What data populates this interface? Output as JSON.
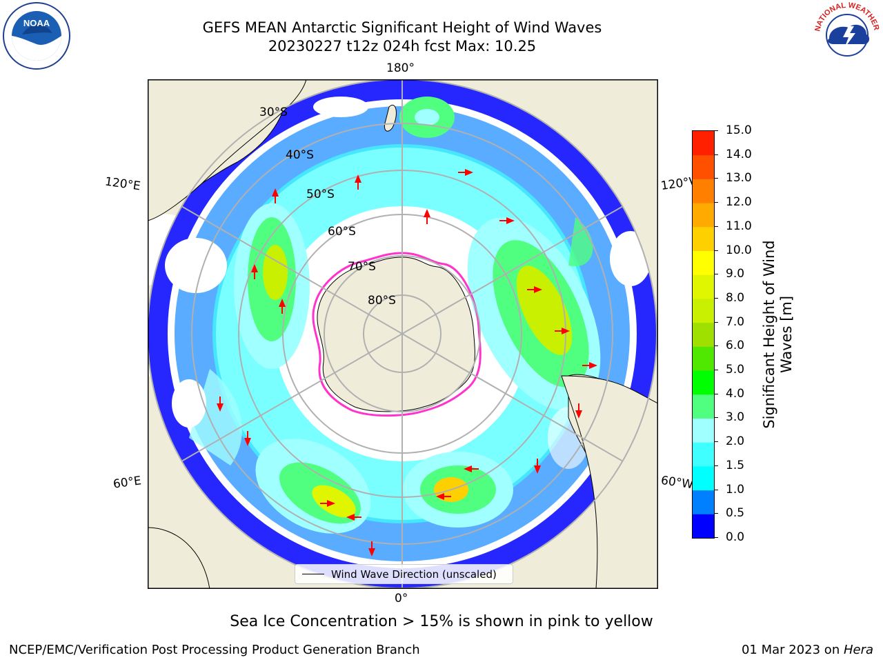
{
  "title": {
    "line1": "GEFS MEAN Antarctic Significant Height of Wind Waves",
    "line2": "20230227 t12z 024h fcst   Max: 10.25"
  },
  "map": {
    "projection": "south-polar-stereographic",
    "longitude_labels": {
      "top": "180°",
      "bottom": "0°",
      "upper_left": "120°E",
      "upper_right": "120°W",
      "lower_left": "60°E",
      "lower_right": "60°W"
    },
    "latitude_labels": [
      "30°S",
      "40°S",
      "50°S",
      "60°S",
      "70°S",
      "80°S"
    ],
    "colors": {
      "land": "#efedda",
      "grid": "#b0b0b0",
      "arrow": "#ff0000",
      "sea_ice_edge": "#ff33cc"
    }
  },
  "legend": {
    "label": "Wind Wave Direction (unscaled)"
  },
  "colorbar": {
    "title_line1": "Significant Height of Wind",
    "title_line2": "Waves [m]",
    "ticks": [
      "0.0",
      "0.5",
      "1.0",
      "1.5",
      "2.0",
      "3.0",
      "4.0",
      "5.0",
      "6.0",
      "7.0",
      "8.0",
      "9.0",
      "10.0",
      "11.0",
      "12.0",
      "13.0",
      "14.0",
      "15.0"
    ],
    "colors": [
      "#0000ff",
      "#0080ff",
      "#00ffff",
      "#40ffff",
      "#a0ffff",
      "#50ff80",
      "#00ff00",
      "#50e800",
      "#a0e000",
      "#c8f000",
      "#e0f500",
      "#ffff00",
      "#ffd000",
      "#ffaa00",
      "#ff8000",
      "#ff5000",
      "#ff2000"
    ]
  },
  "sea_ice_note": "Sea Ice Concentration > 15% is shown in pink to yellow",
  "footer": {
    "left": "NCEP/EMC/Verification Post Processing Product Generation Branch",
    "right_date": "01 Mar 2023 on ",
    "right_host": "Hera"
  },
  "logos": {
    "left": "NOAA",
    "right": "NATIONAL WEATHER SERVICE"
  }
}
